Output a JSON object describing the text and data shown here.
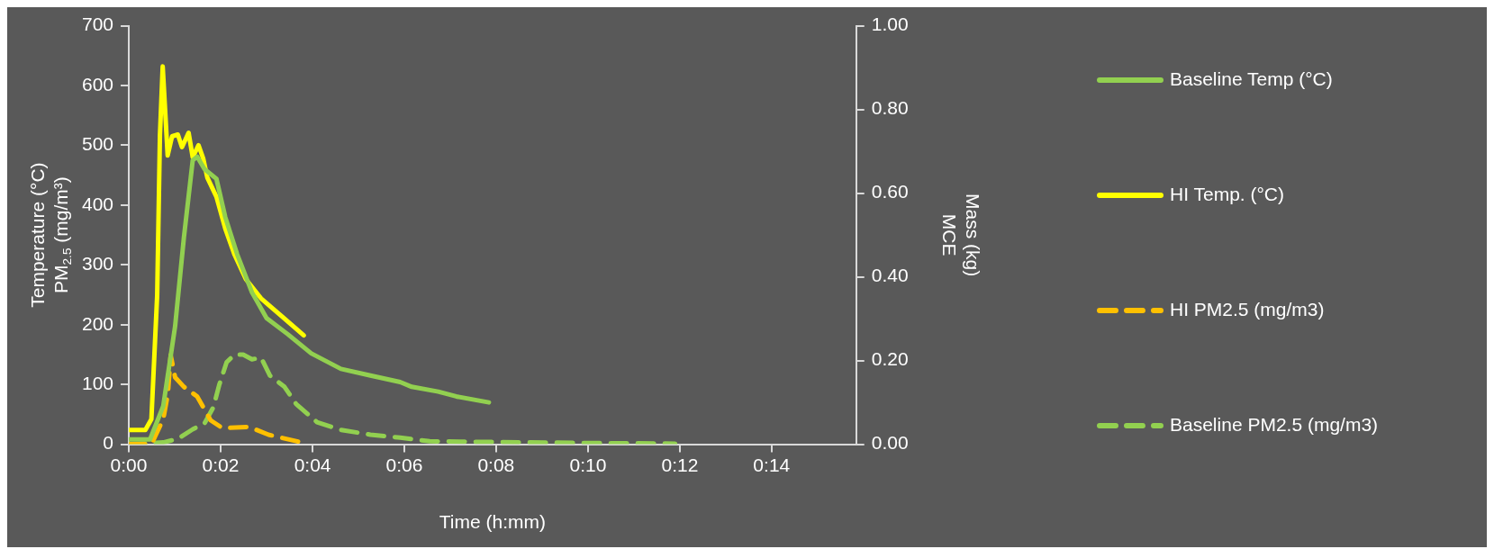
{
  "chart_data": {
    "type": "line",
    "xlabel": "Time (h:mm)",
    "ylabel": "Temperature (°C)\nPM$_{2.5}$ (mg/m³)",
    "y2label": "Mass (kg)\nMCE",
    "xlim": [
      0,
      0.264
    ],
    "xticks": [
      {
        "value": 0,
        "label": "0:00"
      },
      {
        "value": 0.0333,
        "label": "0:02"
      },
      {
        "value": 0.0667,
        "label": "0:04"
      },
      {
        "value": 0.1,
        "label": "0:06"
      },
      {
        "value": 0.1333,
        "label": "0:08"
      },
      {
        "value": 0.1667,
        "label": "0:10"
      },
      {
        "value": 0.2,
        "label": "0:12"
      },
      {
        "value": 0.2333,
        "label": "0:14"
      }
    ],
    "ylim": [
      0,
      700
    ],
    "yticks": [
      0,
      100,
      200,
      300,
      400,
      500,
      600,
      700
    ],
    "y2lim": [
      0,
      1
    ],
    "y2ticks": [
      {
        "value": 0,
        "label": "0.00"
      },
      {
        "value": 0.2,
        "label": "0.20"
      },
      {
        "value": 0.4,
        "label": "0.40"
      },
      {
        "value": 0.6,
        "label": "0.60"
      },
      {
        "value": 0.8,
        "label": "0.80"
      },
      {
        "value": 1,
        "label": "1.00"
      }
    ],
    "grid": false,
    "legend": "right",
    "marker": "none",
    "series": [
      {
        "name": "Baseline Temp (°C)",
        "color": "#92d050",
        "line_style": "solid",
        "x": [
          0,
          0.0077,
          0.0125,
          0.0168,
          0.02,
          0.0232,
          0.0248,
          0.0275,
          0.0318,
          0.035,
          0.0393,
          0.0447,
          0.05,
          0.0577,
          0.0662,
          0.077,
          0.0877,
          0.0985,
          0.1027,
          0.1123,
          0.1188,
          0.1307
        ],
        "values": [
          8,
          8,
          64,
          197,
          346,
          475,
          481,
          460,
          444,
          380,
          318,
          254,
          211,
          184,
          152,
          126,
          115,
          104,
          96,
          88,
          80,
          70
        ]
      },
      {
        "name": "HI Temp. (°C)",
        "color": "#ffff00",
        "line_style": "solid",
        "x": [
          0,
          0.006,
          0.0082,
          0.0103,
          0.0113,
          0.0123,
          0.0141,
          0.0157,
          0.0178,
          0.0193,
          0.0217,
          0.0232,
          0.0253,
          0.027,
          0.0285,
          0.0318,
          0.035,
          0.0383,
          0.0425,
          0.048,
          0.0555,
          0.0635
        ],
        "values": [
          24,
          24,
          42,
          250,
          517,
          632,
          483,
          515,
          518,
          497,
          521,
          480,
          500,
          478,
          446,
          414,
          361,
          318,
          276,
          244,
          214,
          182
        ]
      },
      {
        "name": "HI PM2.5 (mg/m3)",
        "color": "#ffc000",
        "line_style": "dashed",
        "x": [
          0,
          0.0082,
          0.0125,
          0.0142,
          0.0152,
          0.0168,
          0.02,
          0.0248,
          0.0297,
          0.034,
          0.0437,
          0.0507,
          0.0618
        ],
        "values": [
          0,
          0,
          42,
          85,
          149,
          112,
          96,
          80,
          40,
          27,
          29,
          16,
          4
        ]
      },
      {
        "name": "Baseline PM2.5 (mg/m3)",
        "color": "#92d050",
        "line_style": "dashed",
        "x": [
          0,
          0.0125,
          0.0178,
          0.0232,
          0.0275,
          0.0307,
          0.0328,
          0.0355,
          0.0383,
          0.0415,
          0.0447,
          0.048,
          0.0512,
          0.0565,
          0.0608,
          0.0683,
          0.077,
          0.0877,
          0.0985,
          0.1092,
          0.1457,
          0.1705,
          0.1983
        ],
        "values": [
          0,
          3,
          9,
          25,
          35,
          62,
          99,
          137,
          150,
          150,
          142,
          145,
          115,
          96,
          67,
          37,
          24,
          16,
          11,
          5,
          3,
          2,
          1
        ]
      }
    ]
  }
}
